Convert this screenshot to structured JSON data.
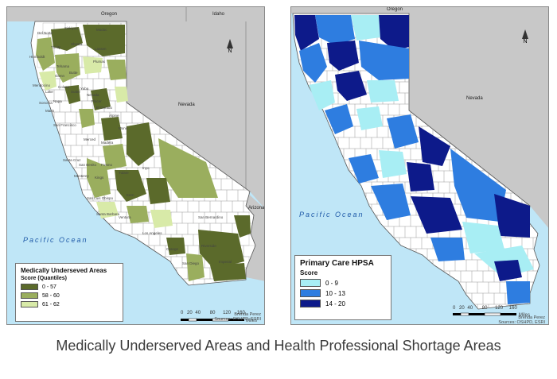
{
  "caption": "Medically Underserved Areas and Health Professional Shortage Areas",
  "left_map": {
    "ocean_label": "Pacific Ocean",
    "state_labels": {
      "oregon": "Oregon",
      "idaho": "Idaho",
      "nevada": "Nevada",
      "arizona": "Arizona"
    },
    "place_labels": [
      "Del Norte",
      "Siskiyou",
      "Modoc",
      "Humboldt",
      "Trinity",
      "Shasta",
      "Lassen",
      "Tehama",
      "Plumas",
      "Glenn",
      "Butte",
      "Mendocino",
      "Lake",
      "Colusa",
      "Sutter",
      "Yuba",
      "Nevada",
      "Placer",
      "El Dorado",
      "Alpine",
      "Sonoma",
      "Napa",
      "Marin",
      "San Francisco",
      "Santa Cruz",
      "Monterey",
      "San Benito",
      "Fresno",
      "Tulare",
      "Kings",
      "Inyo",
      "Kern",
      "San Luis Obispo",
      "Santa Barbara",
      "Ventura",
      "Los Angeles",
      "San Bernardino",
      "Riverside",
      "Orange",
      "San Diego",
      "Imperial",
      "Mono",
      "Madera",
      "Merced"
    ],
    "legend": {
      "title": "Medically Underseved Areas",
      "subtitle": "Score (Quantiles)",
      "items": [
        {
          "label": "0 - 57",
          "color": "#5b6a2b"
        },
        {
          "label": "58 - 60",
          "color": "#9aae5e"
        },
        {
          "label": "61 - 62",
          "color": "#d8eaa8"
        }
      ]
    },
    "scale": {
      "ticks": [
        "0",
        "20",
        "40",
        "80",
        "120",
        "160"
      ],
      "unit": "Miles"
    },
    "north": "N",
    "credit": [
      "Brenda Perez",
      "Sources: OSHPD, ESRI"
    ]
  },
  "right_map": {
    "ocean_label": "Pacific Ocean",
    "state_labels": {
      "oregon": "Oregon",
      "nevada": "Nevada"
    },
    "legend": {
      "title": "Primary Care HPSA",
      "subtitle": "Score",
      "items": [
        {
          "label": "0 - 9",
          "color": "#a8eef4"
        },
        {
          "label": "10 - 13",
          "color": "#2e7de0"
        },
        {
          "label": "14 - 20",
          "color": "#0d1a8a"
        }
      ]
    },
    "scale": {
      "ticks": [
        "0",
        "20",
        "40",
        "80",
        "120",
        "160"
      ],
      "unit": "Miles"
    },
    "north": "N",
    "credit": [
      "Brenda Perez",
      "Sources: OSHPD, ESRI"
    ]
  },
  "colors": {
    "ocean": "#bfe6f7",
    "land_neighbors": "#c8c8c8",
    "california_base": "#ffffff",
    "boundary": "#555555"
  }
}
